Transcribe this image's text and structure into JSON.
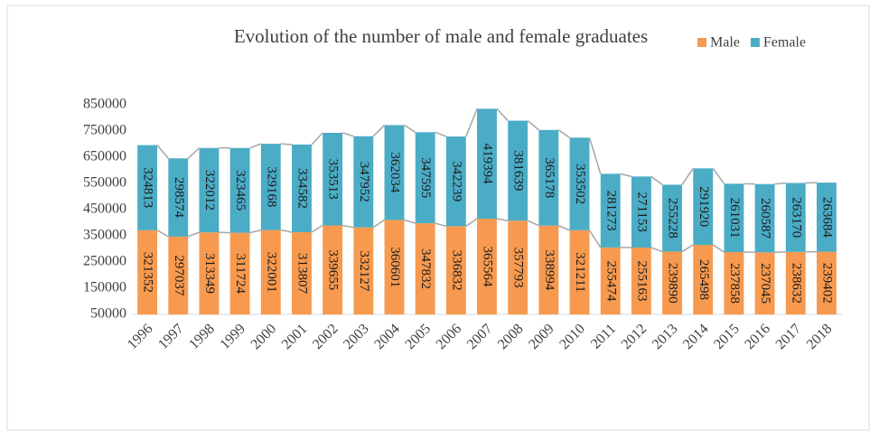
{
  "chart_data": {
    "type": "stacked_bar",
    "title": "Evolution of the number of male and female graduates",
    "categories": [
      "1996",
      "1997",
      "1998",
      "1999",
      "2000",
      "2001",
      "2002",
      "2003",
      "2004",
      "2005",
      "2006",
      "2007",
      "2008",
      "2009",
      "2010",
      "2011",
      "2012",
      "2013",
      "2014",
      "2015",
      "2016",
      "2017",
      "2018"
    ],
    "series": [
      {
        "name": "Male",
        "color": "#f79a4f",
        "values": [
          321352,
          297037,
          313349,
          311724,
          322001,
          313807,
          339655,
          332127,
          360601,
          347832,
          336832,
          365564,
          357793,
          338994,
          321211,
          255474,
          255163,
          239890,
          265498,
          237858,
          237045,
          238632,
          239402
        ]
      },
      {
        "name": "Female",
        "color": "#4bacc6",
        "values": [
          324813,
          298574,
          322012,
          323465,
          329168,
          334582,
          353513,
          347952,
          362034,
          347595,
          342239,
          419394,
          381639,
          365178,
          353502,
          281273,
          271153,
          255228,
          291920,
          261031,
          260587,
          263170,
          263684
        ]
      }
    ],
    "ylim": [
      50000,
      850000
    ],
    "yticks": [
      50000,
      150000,
      250000,
      350000,
      450000,
      550000,
      650000,
      750000,
      850000
    ],
    "legend": "top-right",
    "series_lines": true
  }
}
